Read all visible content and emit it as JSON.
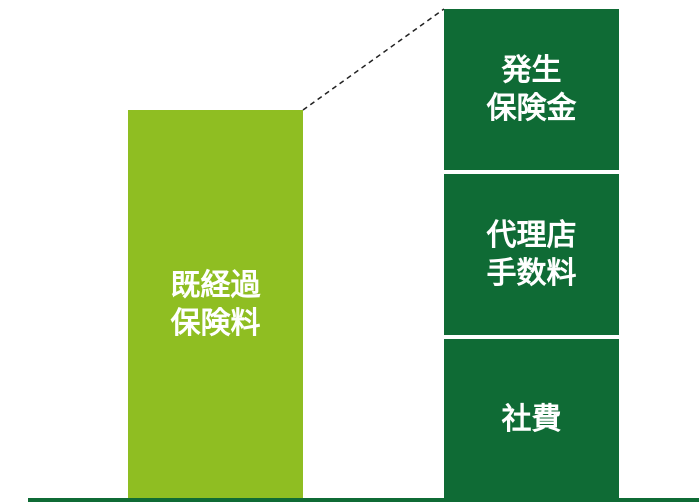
{
  "left_bar": {
    "label": "既経過\n保険料",
    "color": "#8fbe22"
  },
  "right_stack": {
    "color": "#0f6b35",
    "segments": [
      {
        "label": "発生\n保険金"
      },
      {
        "label": "代理店\n手数料"
      },
      {
        "label": "社費"
      }
    ]
  },
  "baseline_color": "#0f6b35"
}
